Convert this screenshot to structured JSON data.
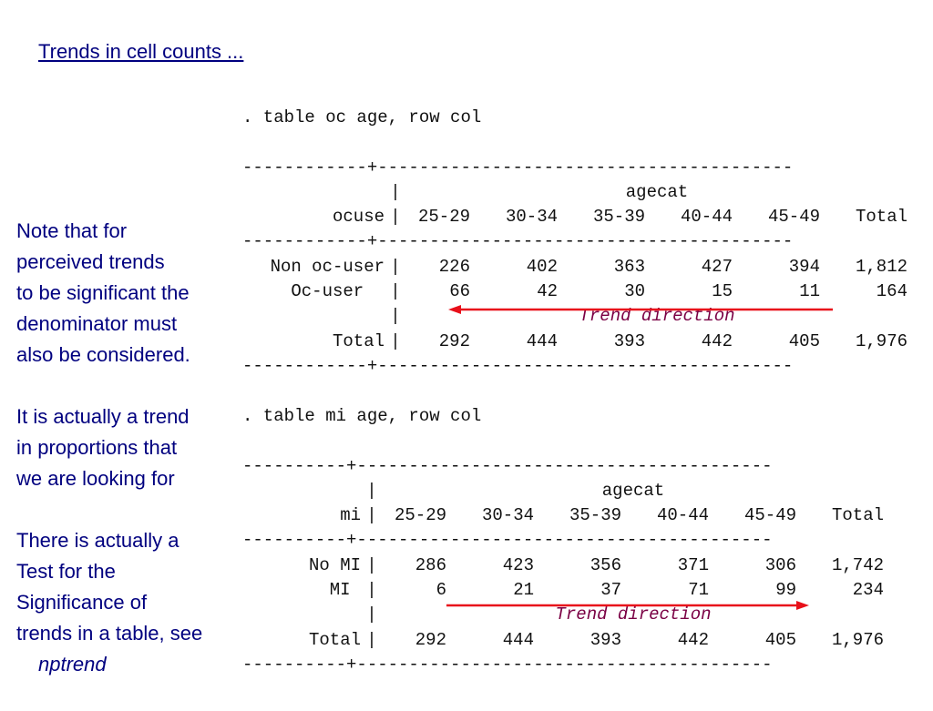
{
  "title": "Trends in cell counts ...",
  "notes": {
    "p1": [
      "Note that for",
      "perceived trends",
      "to be significant the",
      "denominator must",
      "also be considered."
    ],
    "p2": [
      "It is actually a trend",
      "in proportions that",
      "we are looking for"
    ],
    "p3": [
      "There is actually a",
      "Test for the",
      "Significance of",
      "trends in a table, see"
    ],
    "p3_cmd": "nptrend"
  },
  "table1": {
    "command": ". table oc age, row col",
    "rule_top": "------------+----------------------------------------",
    "rule_mid": "------------+----------------------------------------",
    "rule_bot": "------------+----------------------------------------",
    "col_var": "agecat",
    "row_var": "ocuse",
    "headers": [
      "25-29",
      "30-34",
      "35-39",
      "40-44",
      "45-49",
      "Total"
    ],
    "rows": [
      {
        "label": "Non oc-user",
        "values": [
          "226",
          "402",
          "363",
          "427",
          "394",
          "1,812"
        ]
      },
      {
        "label": "Oc-user  ",
        "values": [
          "66",
          "42",
          "30",
          "15",
          "11",
          "164"
        ]
      }
    ],
    "trend_label": "Trend direction",
    "total": {
      "label": "Total",
      "values": [
        "292",
        "444",
        "393",
        "442",
        "405",
        "1,976"
      ]
    }
  },
  "table2": {
    "command": ". table mi age, row col",
    "rule_top": "----------+----------------------------------------",
    "rule_mid": "----------+----------------------------------------",
    "rule_bot": "----------+----------------------------------------",
    "col_var": "agecat",
    "row_var": "mi",
    "headers": [
      "25-29",
      "30-34",
      "35-39",
      "40-44",
      "45-49",
      "Total"
    ],
    "rows": [
      {
        "label": "No MI",
        "values": [
          "286",
          "423",
          "356",
          "371",
          "306",
          "1,742"
        ]
      },
      {
        "label": "MI ",
        "values": [
          "6",
          "21",
          "37",
          "71",
          "99",
          "234"
        ]
      }
    ],
    "trend_label": "Trend direction",
    "total": {
      "label": "Total",
      "values": [
        "292",
        "444",
        "393",
        "442",
        "405",
        "1,976"
      ]
    }
  },
  "colors": {
    "text_blue": "#00007f",
    "arrow_red": "#e8101a",
    "trend_text": "#7a0044"
  }
}
